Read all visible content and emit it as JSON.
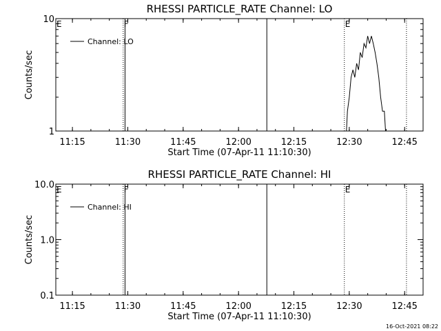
{
  "chart_data": [
    {
      "type": "line",
      "title": "RHESSI PARTICLE_RATE Channel: LO",
      "xlabel": "Start Time (07-Apr-11 11:10:30)",
      "ylabel": "Counts/sec",
      "yscale": "log",
      "ylim": [
        1,
        10
      ],
      "yticks": [
        "1",
        "10"
      ],
      "xlim": [
        "11:10:30",
        "12:50:00"
      ],
      "xticks": [
        "11:15",
        "11:30",
        "11:45",
        "12:00",
        "12:15",
        "12:30",
        "12:45"
      ],
      "grid": false,
      "legend": {
        "position": "top-left",
        "entries": [
          "Channel: LO"
        ]
      },
      "markers": [
        {
          "time": "11:10:30",
          "label": "E",
          "style": "none"
        },
        {
          "time": "11:28:45",
          "label": "F",
          "style": "dotted"
        },
        {
          "time": "11:29:15",
          "label": "",
          "style": "solid"
        },
        {
          "time": "12:07:40",
          "label": "",
          "style": "solid"
        },
        {
          "time": "12:28:40",
          "label": "E",
          "style": "dotted"
        },
        {
          "time": "12:45:30",
          "label": "",
          "style": "dotted"
        }
      ],
      "series": [
        {
          "name": "Channel: LO",
          "x": [
            "12:29:15",
            "12:29:30",
            "12:30:00",
            "12:30:30",
            "12:31:00",
            "12:31:30",
            "12:32:00",
            "12:32:30",
            "12:33:00",
            "12:33:30",
            "12:34:00",
            "12:34:30",
            "12:35:00",
            "12:35:30",
            "12:36:00",
            "12:36:30",
            "12:37:00",
            "12:37:30",
            "12:38:00",
            "12:38:30",
            "12:39:00",
            "12:39:30",
            "12:39:50"
          ],
          "y": [
            1,
            1.5,
            2,
            3,
            3.5,
            3,
            4,
            3.5,
            5,
            4.5,
            6,
            5.5,
            7,
            6,
            7,
            6,
            5,
            4,
            3,
            2,
            1.5,
            1.5,
            1
          ]
        }
      ]
    },
    {
      "type": "line",
      "title": "RHESSI PARTICLE_RATE Channel: HI",
      "xlabel": "Start Time (07-Apr-11 11:10:30)",
      "ylabel": "Counts/sec",
      "yscale": "log",
      "ylim": [
        0.1,
        10
      ],
      "yticks": [
        "0.1",
        "1.0",
        "10.0"
      ],
      "xlim": [
        "11:10:30",
        "12:50:00"
      ],
      "xticks": [
        "11:15",
        "11:30",
        "11:45",
        "12:00",
        "12:15",
        "12:30",
        "12:45"
      ],
      "grid": false,
      "legend": {
        "position": "top-left",
        "entries": [
          "Channel: HI"
        ]
      },
      "markers": [
        {
          "time": "11:10:30",
          "label": "E",
          "style": "none"
        },
        {
          "time": "11:28:45",
          "label": "F",
          "style": "dotted"
        },
        {
          "time": "11:29:15",
          "label": "",
          "style": "solid"
        },
        {
          "time": "12:07:40",
          "label": "",
          "style": "solid"
        },
        {
          "time": "12:28:40",
          "label": "E",
          "style": "dotted"
        },
        {
          "time": "12:45:30",
          "label": "",
          "style": "dotted"
        }
      ],
      "series": [
        {
          "name": "Channel: HI",
          "x": [],
          "y": []
        }
      ]
    }
  ],
  "footer": {
    "timestamp": "16-Oct-2021 08:22"
  }
}
